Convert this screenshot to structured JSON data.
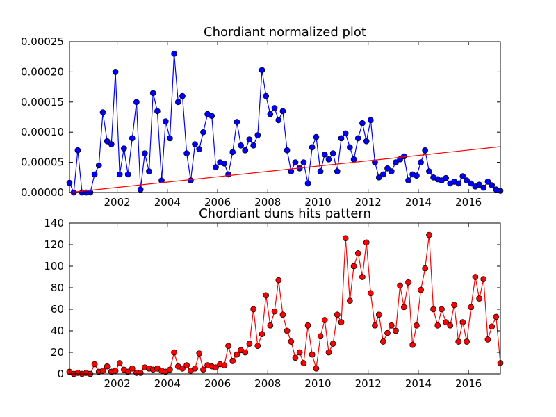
{
  "chart_data": [
    {
      "type": "line",
      "title": "Chordiant normalized plot",
      "x": [
        2000.1,
        2000.27,
        2000.43,
        2000.6,
        2000.77,
        2000.93,
        2001.1,
        2001.27,
        2001.43,
        2001.6,
        2001.77,
        2001.93,
        2002.1,
        2002.27,
        2002.43,
        2002.6,
        2002.77,
        2002.93,
        2003.1,
        2003.27,
        2003.43,
        2003.6,
        2003.77,
        2003.93,
        2004.1,
        2004.27,
        2004.43,
        2004.6,
        2004.77,
        2004.93,
        2005.1,
        2005.27,
        2005.43,
        2005.6,
        2005.77,
        2005.93,
        2006.1,
        2006.27,
        2006.43,
        2006.6,
        2006.77,
        2006.93,
        2007.1,
        2007.27,
        2007.43,
        2007.6,
        2007.77,
        2007.93,
        2008.1,
        2008.27,
        2008.43,
        2008.6,
        2008.77,
        2008.93,
        2009.1,
        2009.27,
        2009.43,
        2009.6,
        2009.77,
        2009.93,
        2010.1,
        2010.27,
        2010.43,
        2010.6,
        2010.77,
        2010.93,
        2011.1,
        2011.27,
        2011.43,
        2011.6,
        2011.77,
        2011.93,
        2012.1,
        2012.27,
        2012.43,
        2012.6,
        2012.77,
        2012.93,
        2013.1,
        2013.27,
        2013.43,
        2013.6,
        2013.77,
        2013.93,
        2014.1,
        2014.27,
        2014.43,
        2014.6,
        2014.77,
        2014.93,
        2015.1,
        2015.27,
        2015.43,
        2015.6,
        2015.77,
        2015.93,
        2016.1,
        2016.27,
        2016.43,
        2016.6,
        2016.77,
        2016.93,
        2017.1,
        2017.27
      ],
      "series": [
        {
          "color": "#0000ff",
          "marker": true,
          "values": [
            1.6e-05,
            0,
            7e-05,
            0,
            0,
            0,
            3e-05,
            4.5e-05,
            0.000133,
            8.5e-05,
            8e-05,
            0.0002,
            3e-05,
            7.3e-05,
            3e-05,
            9e-05,
            0.00015,
            5e-06,
            6.5e-05,
            3.5e-05,
            0.000165,
            0.000135,
            2e-05,
            0.000118,
            9e-05,
            0.00023,
            0.00015,
            0.00016,
            6.5e-05,
            2e-05,
            8e-05,
            7.2e-05,
            0.0001,
            0.00013,
            0.000127,
            4.2e-05,
            5e-05,
            4.8e-05,
            3e-05,
            6.7e-05,
            0.000117,
            7.8e-05,
            7e-05,
            8.8e-05,
            7.8e-05,
            9.5e-05,
            0.000203,
            0.00016,
            0.00013,
            0.00014,
            0.00012,
            0.000135,
            7e-05,
            3.5e-05,
            5e-05,
            4e-05,
            5e-05,
            1.5e-05,
            7.5e-05,
            9.2e-05,
            3.5e-05,
            6.3e-05,
            5.5e-05,
            6.5e-05,
            3.5e-05,
            9e-05,
            9.8e-05,
            7.5e-05,
            5.5e-05,
            9e-05,
            0.000115,
            8.5e-05,
            0.00012,
            5e-05,
            2.5e-05,
            3e-05,
            4e-05,
            3.5e-05,
            5e-05,
            5.5e-05,
            6e-05,
            2e-05,
            3e-05,
            2.8e-05,
            5e-05,
            7e-05,
            3.5e-05,
            2.5e-05,
            2.2e-05,
            2e-05,
            2.4e-05,
            1.5e-05,
            1.8e-05,
            1.5e-05,
            2.7e-05,
            2e-05,
            1.5e-05,
            1e-05,
            1.3e-05,
            8e-06,
            1.8e-05,
            1.2e-05,
            5e-06,
            3e-06
          ]
        },
        {
          "color": "#ff0000",
          "marker": false,
          "x": [
            2000.1,
            2017.27
          ],
          "values": [
            0,
            7.6e-05
          ]
        }
      ],
      "xlim": [
        2000.1,
        2017.27
      ],
      "xticks": [
        2002,
        2004,
        2006,
        2008,
        2010,
        2012,
        2014,
        2016
      ],
      "ylim": [
        0,
        0.00025
      ],
      "yticks": [
        {
          "value": 0,
          "label": "0.00000"
        },
        {
          "value": 5e-05,
          "label": "0.00005"
        },
        {
          "value": 0.0001,
          "label": "0.00010"
        },
        {
          "value": 0.00015,
          "label": "0.00015"
        },
        {
          "value": 0.0002,
          "label": "0.00020"
        },
        {
          "value": 0.00025,
          "label": "0.00025"
        }
      ]
    },
    {
      "type": "line",
      "title": "Chordiant duns hits pattern",
      "x": [
        2000.1,
        2000.27,
        2000.43,
        2000.6,
        2000.77,
        2000.93,
        2001.1,
        2001.27,
        2001.43,
        2001.6,
        2001.77,
        2001.93,
        2002.1,
        2002.27,
        2002.43,
        2002.6,
        2002.77,
        2002.93,
        2003.1,
        2003.27,
        2003.43,
        2003.6,
        2003.77,
        2003.93,
        2004.1,
        2004.27,
        2004.43,
        2004.6,
        2004.77,
        2004.93,
        2005.1,
        2005.27,
        2005.43,
        2005.6,
        2005.77,
        2005.93,
        2006.1,
        2006.27,
        2006.43,
        2006.6,
        2006.77,
        2006.93,
        2007.1,
        2007.27,
        2007.43,
        2007.6,
        2007.77,
        2007.93,
        2008.1,
        2008.27,
        2008.43,
        2008.6,
        2008.77,
        2008.93,
        2009.1,
        2009.27,
        2009.43,
        2009.6,
        2009.77,
        2009.93,
        2010.1,
        2010.27,
        2010.43,
        2010.6,
        2010.77,
        2010.93,
        2011.1,
        2011.27,
        2011.43,
        2011.6,
        2011.77,
        2011.93,
        2012.1,
        2012.27,
        2012.43,
        2012.6,
        2012.77,
        2012.93,
        2013.1,
        2013.27,
        2013.43,
        2013.6,
        2013.77,
        2013.93,
        2014.1,
        2014.27,
        2014.43,
        2014.6,
        2014.77,
        2014.93,
        2015.1,
        2015.27,
        2015.43,
        2015.6,
        2015.77,
        2015.93,
        2016.1,
        2016.27,
        2016.43,
        2016.6,
        2016.77,
        2016.93,
        2017.1,
        2017.27
      ],
      "series": [
        {
          "color": "#ff0000",
          "marker": true,
          "values": [
            2,
            0,
            1,
            0,
            1,
            0,
            9,
            2,
            3,
            7,
            2,
            3,
            10,
            4,
            2,
            5,
            1,
            1,
            6,
            5,
            4,
            5,
            3,
            2,
            4,
            20,
            7,
            5,
            8,
            3,
            5,
            19,
            4,
            8,
            7,
            6,
            9,
            8,
            26,
            12,
            18,
            22,
            20,
            28,
            60,
            26,
            37,
            73,
            45,
            58,
            87,
            55,
            40,
            30,
            15,
            20,
            10,
            45,
            18,
            5,
            35,
            50,
            20,
            28,
            55,
            48,
            126,
            68,
            100,
            112,
            90,
            122,
            75,
            45,
            55,
            30,
            38,
            45,
            40,
            82,
            62,
            85,
            27,
            45,
            78,
            98,
            129,
            60,
            45,
            60,
            48,
            45,
            64,
            30,
            48,
            30,
            62,
            90,
            70,
            88,
            32,
            44,
            53,
            10
          ]
        }
      ],
      "xlim": [
        2000.1,
        2017.27
      ],
      "xticks": [
        2002,
        2004,
        2006,
        2008,
        2010,
        2012,
        2014,
        2016
      ],
      "ylim": [
        0,
        140
      ],
      "yticks": [
        0,
        20,
        40,
        60,
        80,
        100,
        120,
        140
      ]
    }
  ]
}
